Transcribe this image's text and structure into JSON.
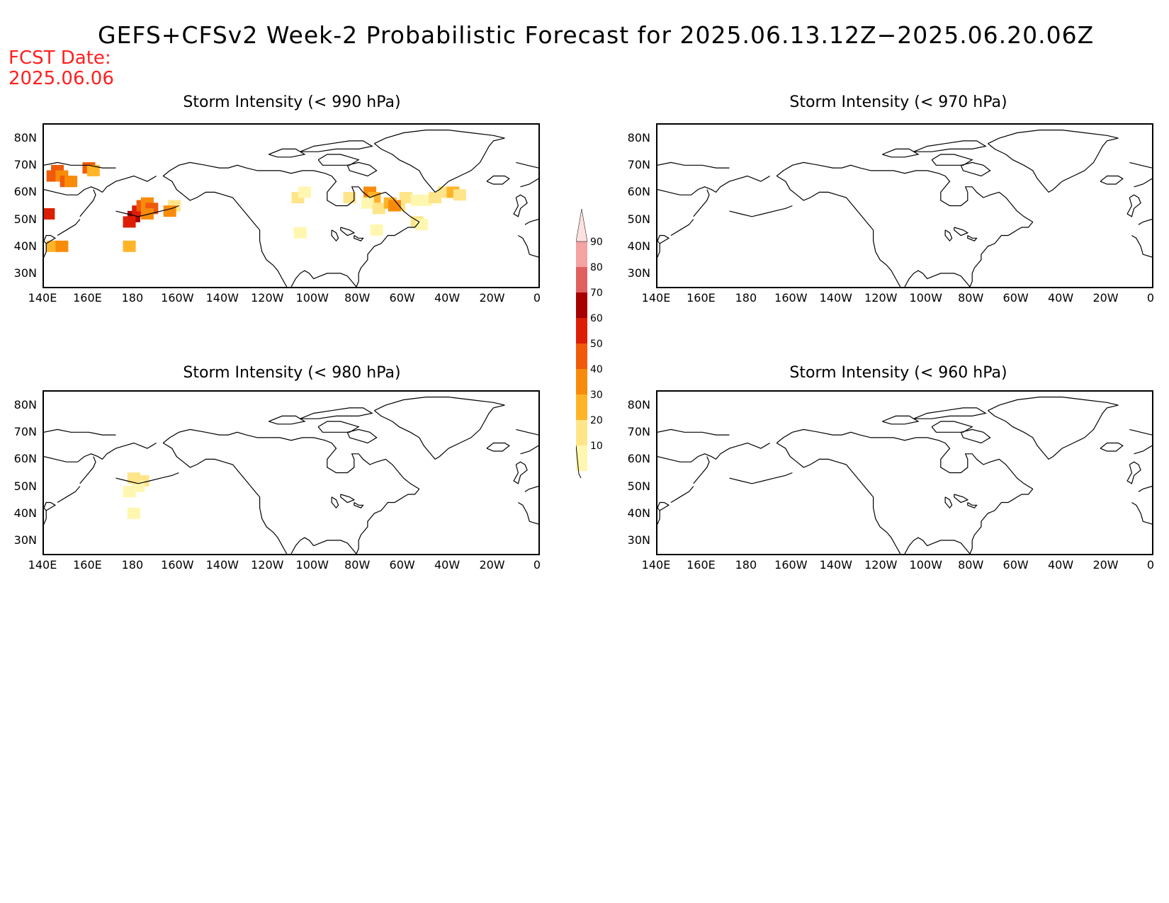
{
  "title": "GEFS+CFSv2 Week-2 Probabilistic Forecast for 2025.06.13.12Z−2025.06.20.06Z",
  "fcst_date": {
    "line1": "FCST Date:",
    "line2": "2025.06.06"
  },
  "colors": {
    "fcst": "#ff2020",
    "coast": "#000000"
  },
  "panels": [
    {
      "id": "p990",
      "title": "Storm Intensity (< 990 hPa)"
    },
    {
      "id": "p970",
      "title": "Storm Intensity (< 970 hPa)"
    },
    {
      "id": "p980",
      "title": "Storm Intensity (< 980 hPa)"
    },
    {
      "id": "p960",
      "title": "Storm Intensity (< 960 hPa)"
    }
  ],
  "lat_labels": [
    "80N",
    "70N",
    "60N",
    "50N",
    "40N",
    "30N"
  ],
  "lon_labels": [
    "140E",
    "160E",
    "180",
    "160W",
    "140W",
    "120W",
    "100W",
    "80W",
    "60W",
    "40W",
    "20W",
    "0"
  ],
  "colorbar": {
    "levels": [
      "10",
      "20",
      "30",
      "40",
      "50",
      "60",
      "70",
      "80",
      "90"
    ],
    "colors": [
      "#fff7b0",
      "#ffe58a",
      "#ffb428",
      "#f98b0a",
      "#f05a0a",
      "#dc1e05",
      "#a80000",
      "#e06060",
      "#f4a2a2",
      "#fde0e0"
    ]
  }
}
